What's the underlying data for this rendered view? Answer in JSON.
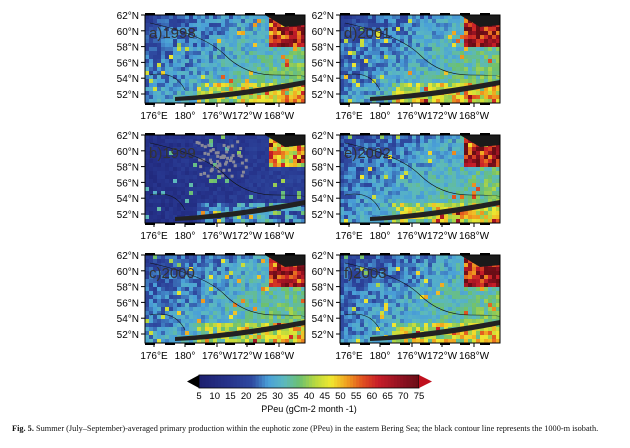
{
  "figure": {
    "panels": [
      {
        "label": "a)1998",
        "column": 0,
        "row": 0
      },
      {
        "label": "b)1999",
        "column": 0,
        "row": 1
      },
      {
        "label": "c)2000",
        "column": 0,
        "row": 2
      },
      {
        "label": "d)2001",
        "column": 1,
        "row": 0
      },
      {
        "label": "e)2002",
        "column": 1,
        "row": 1
      },
      {
        "label": "f)2003",
        "column": 1,
        "row": 2
      }
    ],
    "lat_ticks": [
      "62°N",
      "60°N",
      "58°N",
      "56°N",
      "54°N",
      "52°N"
    ],
    "lon_ticks": [
      "176°E",
      "180°",
      "176°W",
      "172°W",
      "168°W"
    ]
  },
  "colorbar": {
    "ticks": [
      "5",
      "10",
      "15",
      "20",
      "25",
      "30",
      "35",
      "40",
      "45",
      "50",
      "55",
      "60",
      "65",
      "70",
      "75"
    ],
    "label": "PPeu (gCm-2  month -1)",
    "range": [
      5,
      75
    ],
    "extend": "both",
    "colors": {
      "low": "#1c1f6e",
      "mid": "#f0e830",
      "high": "#6a0d15",
      "under": "#000000",
      "over": "#c0101e"
    }
  },
  "caption": {
    "prefix": "Fig. 5.",
    "text": "Summer (July–September)-averaged primary production within the euphotic zone (PPeu) in the eastern Bering Sea; the black contour line represents the 1000-m isobath."
  }
}
